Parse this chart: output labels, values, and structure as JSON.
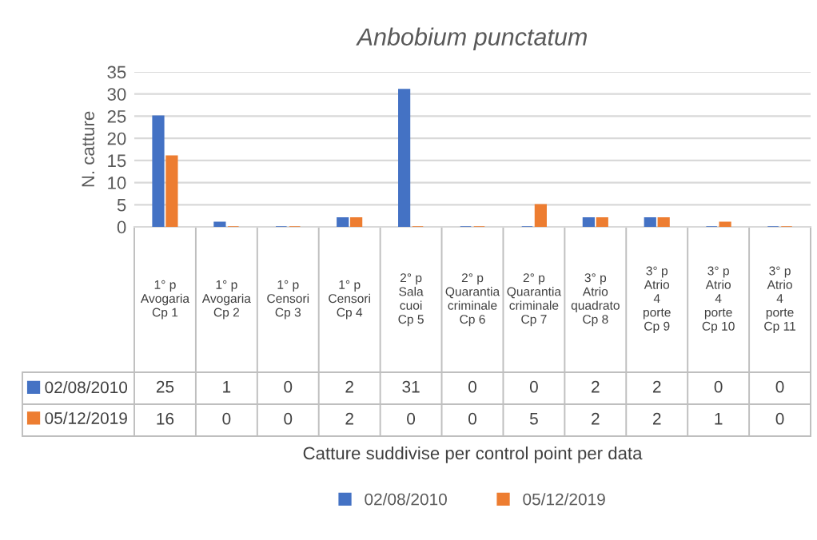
{
  "chart_data": {
    "type": "bar",
    "title": "Anbobium punctatum",
    "ylabel": "N. catture",
    "annotations": [
      "Catture suddivise per control point per data"
    ],
    "categories": [
      "1° p Avogaria Cp 1",
      "1° p Avogaria Cp 2",
      "1° p Censori Cp 3",
      "1° p Censori Cp 4",
      "2° p Sala cuoi Cp 5",
      "2° p Quarantia criminale Cp 6",
      "2° p Quarantia criminale Cp 7",
      "3° p Atrio quadrato Cp 8",
      "3° p Atrio 4 porte Cp 9",
      "3° p Atrio 4 porte Cp 10",
      "3° p Atrio 4 porte Cp 11"
    ],
    "series": [
      {
        "name": "02/08/2010",
        "color": "#4472c4",
        "values": [
          25,
          1,
          0,
          2,
          31,
          0,
          0,
          2,
          2,
          0,
          0
        ]
      },
      {
        "name": "05/12/2019",
        "color": "#ed7d31",
        "values": [
          16,
          0,
          0,
          2,
          0,
          0,
          5,
          2,
          2,
          1,
          0
        ]
      }
    ],
    "ylim": [
      0,
      35
    ],
    "yticks": [
      0,
      5,
      10,
      15,
      20,
      25,
      30,
      35
    ],
    "grid": "y",
    "legend": "bottom",
    "data_labels": true
  }
}
